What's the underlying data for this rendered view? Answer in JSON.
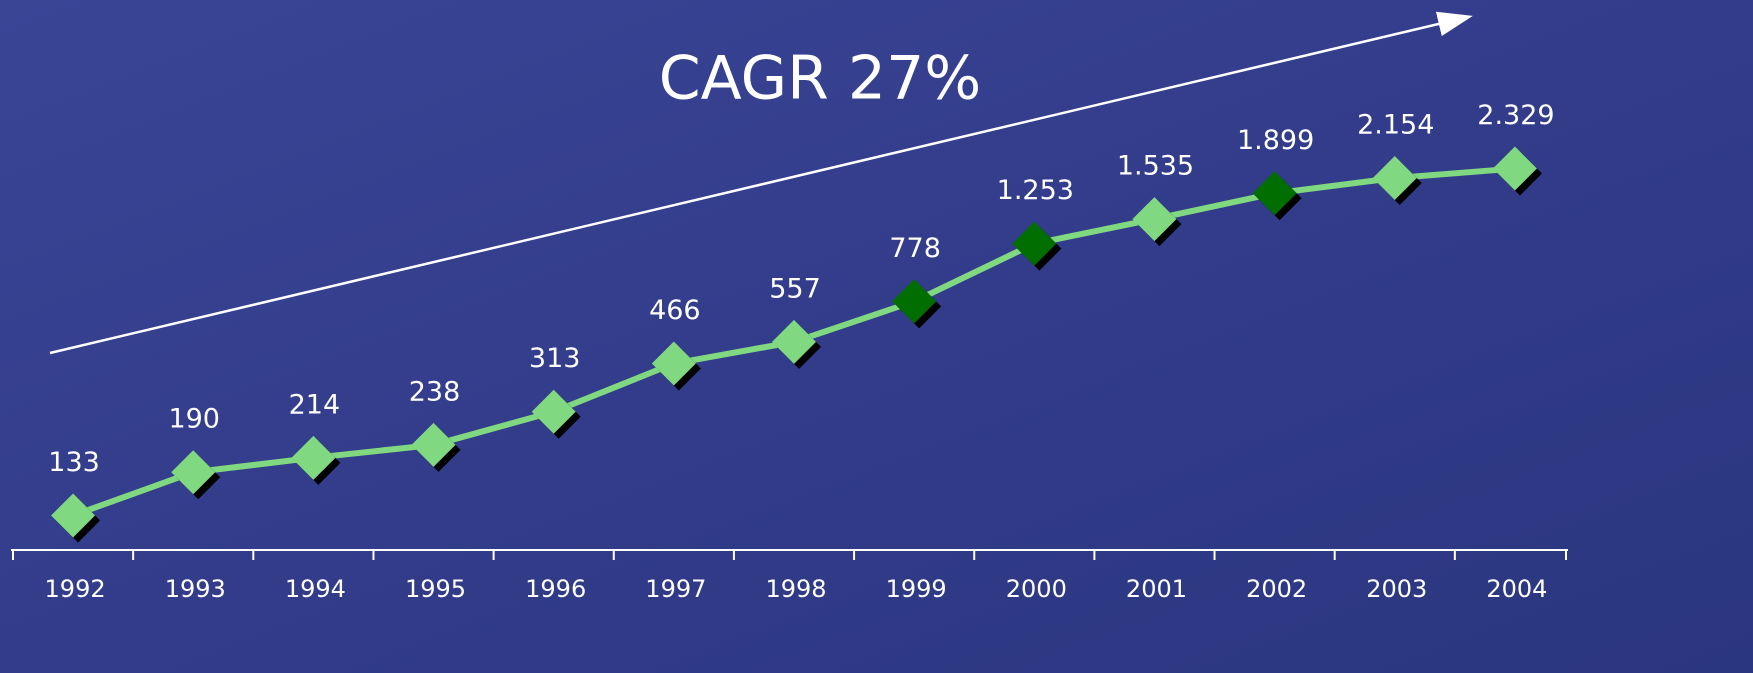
{
  "chart_data": {
    "type": "line",
    "annotation": "CAGR 27%",
    "categories": [
      "1992",
      "1993",
      "1994",
      "1995",
      "1996",
      "1997",
      "1998",
      "1999",
      "2000",
      "2001",
      "2002",
      "2003",
      "2004"
    ],
    "values": [
      133,
      190,
      214,
      238,
      313,
      466,
      557,
      778,
      1253,
      1535,
      1899,
      2154,
      2329
    ],
    "value_labels": [
      "133",
      "190",
      "214",
      "238",
      "313",
      "466",
      "557",
      "778",
      "1.253",
      "1.535",
      "1.899",
      "2.154",
      "2.329"
    ],
    "color": "#80d880",
    "marker_colors": [
      "#80d880",
      "#80d880",
      "#80d880",
      "#80d880",
      "#80d880",
      "#80d880",
      "#80d880",
      "#006e00",
      "#006e00",
      "#80d880",
      "#006e00",
      "#80d880",
      "#80d880"
    ],
    "log_scale": true,
    "ylim": [
      100,
      10000
    ]
  }
}
